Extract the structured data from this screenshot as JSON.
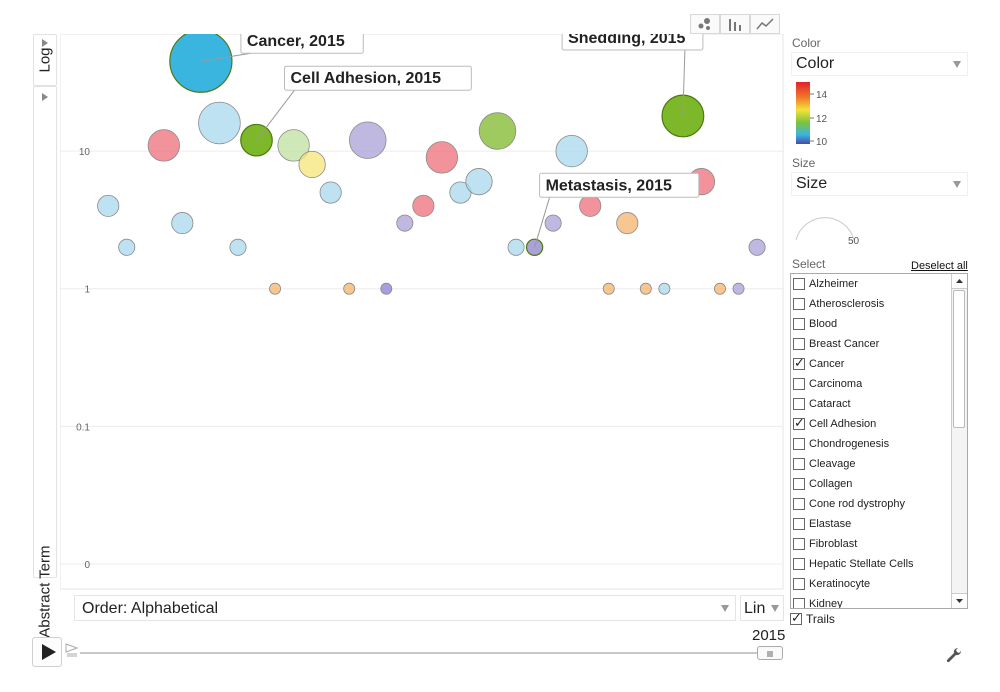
{
  "y_axis": {
    "scale_label": "Log",
    "title": "+Abstract Term"
  },
  "x_axis": {
    "order_label": "Order: Alphabetical",
    "scale_label": "Lin"
  },
  "view_buttons": {
    "bubble": "bubble-chart-icon",
    "bar": "bar-chart-icon",
    "line": "line-chart-icon"
  },
  "color_panel": {
    "label": "Color",
    "selected": "Color",
    "legend_ticks": [
      "14",
      "12",
      "10"
    ]
  },
  "size_panel": {
    "label": "Size",
    "selected": "Size",
    "gauge_value": "50"
  },
  "select_panel": {
    "label": "Select",
    "deselect_all": "Deselect all",
    "items": [
      {
        "label": "Alzheimer",
        "checked": false
      },
      {
        "label": "Atherosclerosis",
        "checked": false
      },
      {
        "label": "Blood",
        "checked": false
      },
      {
        "label": "Breast Cancer",
        "checked": false
      },
      {
        "label": "Cancer",
        "checked": true
      },
      {
        "label": "Carcinoma",
        "checked": false
      },
      {
        "label": "Cataract",
        "checked": false
      },
      {
        "label": "Cell Adhesion",
        "checked": true
      },
      {
        "label": "Chondrogenesis",
        "checked": false
      },
      {
        "label": "Cleavage",
        "checked": false
      },
      {
        "label": "Collagen",
        "checked": false
      },
      {
        "label": "Cone rod dystrophy",
        "checked": false
      },
      {
        "label": "Elastase",
        "checked": false
      },
      {
        "label": "Fibroblast",
        "checked": false
      },
      {
        "label": "Hepatic Stellate Cells",
        "checked": false
      },
      {
        "label": "Keratinocyte",
        "checked": false
      },
      {
        "label": "Kidney",
        "checked": false
      }
    ]
  },
  "trails": {
    "label": "Trails",
    "checked": true
  },
  "playback": {
    "year": "2015"
  },
  "chart_data": {
    "type": "scatter",
    "yscale": "log",
    "ylim": [
      0.01,
      60
    ],
    "y_ticks": [
      {
        "label": "10",
        "value": 10
      },
      {
        "label": "1",
        "value": 1
      },
      {
        "label": "0.1",
        "value": 0.1
      },
      {
        "label": "0",
        "value": 0.01
      }
    ],
    "xlim": [
      0,
      39
    ],
    "legend": {
      "min": 10,
      "max": 15
    },
    "points": [
      {
        "x": 2.6,
        "y": 4,
        "size": 3,
        "color": "#a8d8ee"
      },
      {
        "x": 3.6,
        "y": 2,
        "size": 2,
        "color": "#a8d8ee"
      },
      {
        "x": 5.6,
        "y": 11,
        "size": 5,
        "color": "#ee6f7a"
      },
      {
        "x": 6.6,
        "y": 3,
        "size": 3,
        "color": "#a8d8ee"
      },
      {
        "x": 7.6,
        "y": 45,
        "size": 11,
        "color": "#3ab5e0"
      },
      {
        "x": 8.6,
        "y": 16,
        "size": 7,
        "color": "#a8d8ee"
      },
      {
        "x": 9.6,
        "y": 2,
        "size": 2,
        "color": "#a8d8ee"
      },
      {
        "x": 10.6,
        "y": 12,
        "size": 5,
        "color": "#7db82a"
      },
      {
        "x": 11.6,
        "y": 1,
        "size": 1,
        "color": "#f5b46c"
      },
      {
        "x": 12.6,
        "y": 11,
        "size": 5,
        "color": "#bfe0a0"
      },
      {
        "x": 13.6,
        "y": 8,
        "size": 4,
        "color": "#f5e67a"
      },
      {
        "x": 14.6,
        "y": 5,
        "size": 3,
        "color": "#a8d8ee"
      },
      {
        "x": 15.6,
        "y": 1,
        "size": 1,
        "color": "#f5b46c"
      },
      {
        "x": 16.6,
        "y": 12,
        "size": 6,
        "color": "#a9a1d8"
      },
      {
        "x": 17.6,
        "y": 1,
        "size": 1,
        "color": "#8a7fd1"
      },
      {
        "x": 18.6,
        "y": 3,
        "size": 2,
        "color": "#a9a1d8"
      },
      {
        "x": 19.6,
        "y": 4,
        "size": 3,
        "color": "#ee6f7a"
      },
      {
        "x": 20.6,
        "y": 9,
        "size": 5,
        "color": "#ee6f7a"
      },
      {
        "x": 21.6,
        "y": 5,
        "size": 3,
        "color": "#a8d8ee"
      },
      {
        "x": 22.6,
        "y": 6,
        "size": 4,
        "color": "#a8d8ee"
      },
      {
        "x": 23.6,
        "y": 14,
        "size": 6,
        "color": "#7db82a"
      },
      {
        "x": 24.6,
        "y": 2,
        "size": 2,
        "color": "#a8d8ee"
      },
      {
        "x": 25.6,
        "y": 2,
        "size": 2,
        "color": "#a9a1d8"
      },
      {
        "x": 26.6,
        "y": 3,
        "size": 2,
        "color": "#a9a1d8"
      },
      {
        "x": 27.6,
        "y": 10,
        "size": 5,
        "color": "#a8d8ee"
      },
      {
        "x": 28.6,
        "y": 4,
        "size": 3,
        "color": "#ee6f7a"
      },
      {
        "x": 29.6,
        "y": 1,
        "size": 1,
        "color": "#f5b46c"
      },
      {
        "x": 30.6,
        "y": 3,
        "size": 3,
        "color": "#f5b46c"
      },
      {
        "x": 31.6,
        "y": 1,
        "size": 1,
        "color": "#f5b46c"
      },
      {
        "x": 32.6,
        "y": 1,
        "size": 1,
        "color": "#a8d8ee"
      },
      {
        "x": 33.6,
        "y": 18,
        "size": 7,
        "color": "#7db82a"
      },
      {
        "x": 34.6,
        "y": 6,
        "size": 4,
        "color": "#ee6f7a"
      },
      {
        "x": 35.6,
        "y": 1,
        "size": 1,
        "color": "#f5b46c"
      },
      {
        "x": 36.6,
        "y": 1,
        "size": 1,
        "color": "#a9a1d8"
      },
      {
        "x": 37.6,
        "y": 2,
        "size": 2,
        "color": "#a9a1d8"
      }
    ],
    "annotations": [
      {
        "text": "Cancer, 2015",
        "point": 4
      },
      {
        "text": "Cell Adhesion, 2015",
        "point": 7
      },
      {
        "text": "Metastasis, 2015",
        "point": 22
      },
      {
        "text": "Shedding, 2015",
        "point": 30
      }
    ]
  }
}
